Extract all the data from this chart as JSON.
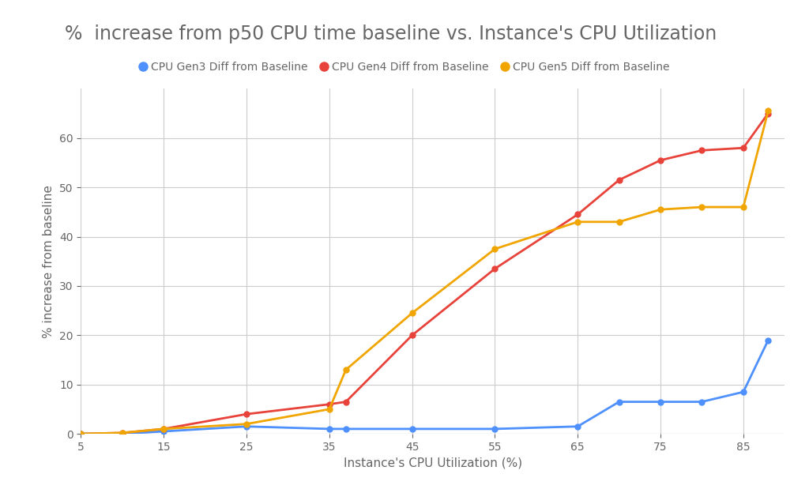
{
  "title": "%  increase from p50 CPU time baseline vs. Instance's CPU Utilization",
  "xlabel": "Instance's CPU Utilization (%)",
  "ylabel": "% increase from baseline",
  "background_color": "#ffffff",
  "grid_color": "#cccccc",
  "series": [
    {
      "label": "CPU Gen3 Diff from Baseline",
      "color": "#4d90fe",
      "x": [
        5,
        10,
        15,
        25,
        35,
        37,
        45,
        55,
        65,
        70,
        75,
        80,
        85,
        88
      ],
      "y": [
        0,
        0,
        0.5,
        1.5,
        1.0,
        1.0,
        1.0,
        1.0,
        1.5,
        6.5,
        6.5,
        6.5,
        8.5,
        19.0
      ]
    },
    {
      "label": "CPU Gen4 Diff from Baseline",
      "color": "#e8433a",
      "x": [
        5,
        10,
        15,
        25,
        35,
        37,
        45,
        55,
        65,
        70,
        75,
        80,
        85,
        88
      ],
      "y": [
        0,
        0.2,
        1.0,
        4.0,
        6.0,
        6.5,
        20.0,
        33.5,
        44.5,
        51.5,
        55.5,
        57.5,
        58.0,
        65.0
      ]
    },
    {
      "label": "CPU Gen5 Diff from Baseline",
      "color": "#f0a500",
      "x": [
        5,
        10,
        15,
        25,
        35,
        37,
        45,
        55,
        65,
        70,
        75,
        80,
        85,
        88
      ],
      "y": [
        0,
        0.2,
        1.0,
        2.0,
        5.0,
        13.0,
        24.5,
        37.5,
        43.0,
        43.0,
        45.5,
        46.0,
        46.0,
        65.5
      ]
    }
  ],
  "xlim": [
    5,
    90
  ],
  "ylim": [
    0,
    70
  ],
  "xticks": [
    5,
    15,
    25,
    35,
    45,
    55,
    65,
    75,
    85
  ],
  "yticks": [
    0,
    10,
    20,
    30,
    40,
    50,
    60
  ],
  "title_fontsize": 17,
  "label_fontsize": 11,
  "tick_fontsize": 10,
  "legend_fontsize": 10,
  "marker": "o",
  "marker_size": 5,
  "line_width": 2.0
}
